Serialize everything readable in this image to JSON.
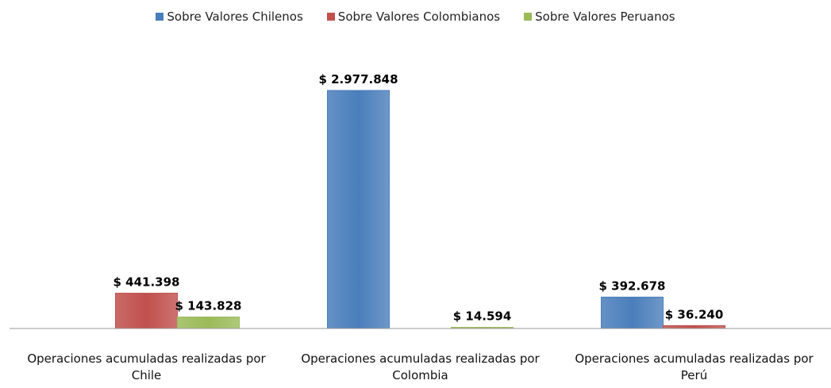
{
  "chart_data": {
    "type": "bar",
    "categories": [
      "Operaciones acumuladas realizadas por Chile",
      "Operaciones acumuladas realizadas por Colombia",
      "Operaciones acumuladas realizadas por Perú"
    ],
    "series": [
      {
        "name": "Sobre Valores Chilenos",
        "color": "#4a7ebb",
        "values": [
          null,
          2977848,
          392678
        ],
        "value_labels": [
          null,
          "$ 2.977.848",
          "$ 392.678"
        ]
      },
      {
        "name": "Sobre Valores Colombianos",
        "color": "#c0504d",
        "values": [
          441398,
          null,
          36240
        ],
        "value_labels": [
          "$ 441.398",
          null,
          "$ 36.240"
        ]
      },
      {
        "name": "Sobre Valores Peruanos",
        "color": "#9bbb59",
        "values": [
          143828,
          14594,
          null
        ],
        "value_labels": [
          "$ 143.828",
          "$ 14.594",
          null
        ]
      }
    ],
    "legend": "top"
  }
}
